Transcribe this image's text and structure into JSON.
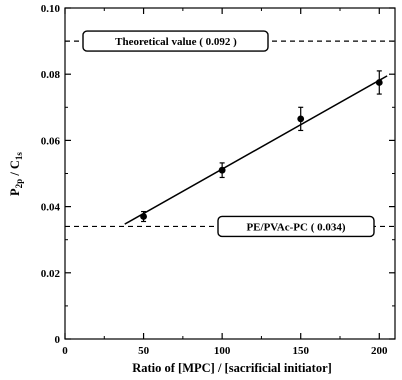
{
  "chart_data": {
    "type": "scatter",
    "xlabel": "Ratio of [MPC]  / [sacrificial initiator]",
    "ylabel_main": "P",
    "ylabel_sub1": "2p",
    "ylabel_mid": " / C",
    "ylabel_sub2": "1s",
    "xlim": [
      0,
      210
    ],
    "ylim": [
      0,
      0.1
    ],
    "xticks": [
      0,
      50,
      100,
      150,
      200
    ],
    "xtick_labels": [
      "0",
      "50",
      "100",
      "150",
      "200"
    ],
    "yticks": [
      0,
      0.02,
      0.04,
      0.06,
      0.08,
      0.1
    ],
    "ytick_labels": [
      "0",
      "0.02",
      "0.04",
      "0.06",
      "0.08",
      "0.10"
    ],
    "points": [
      {
        "x": 50,
        "y": 0.037,
        "err": 0.0015
      },
      {
        "x": 100,
        "y": 0.051,
        "err": 0.0022
      },
      {
        "x": 150,
        "y": 0.0665,
        "err": 0.0035
      },
      {
        "x": 200,
        "y": 0.0775,
        "err": 0.0035
      }
    ],
    "fit_line": {
      "x": [
        38,
        205
      ],
      "y": [
        0.0347,
        0.0795
      ]
    },
    "reference_lines": [
      {
        "y": 0.09,
        "label": "Theoretical value ( 0.092 )"
      },
      {
        "y": 0.034,
        "label": "PE/PVAc-PC ( 0.034)"
      }
    ],
    "grid": false,
    "legend": "none"
  }
}
